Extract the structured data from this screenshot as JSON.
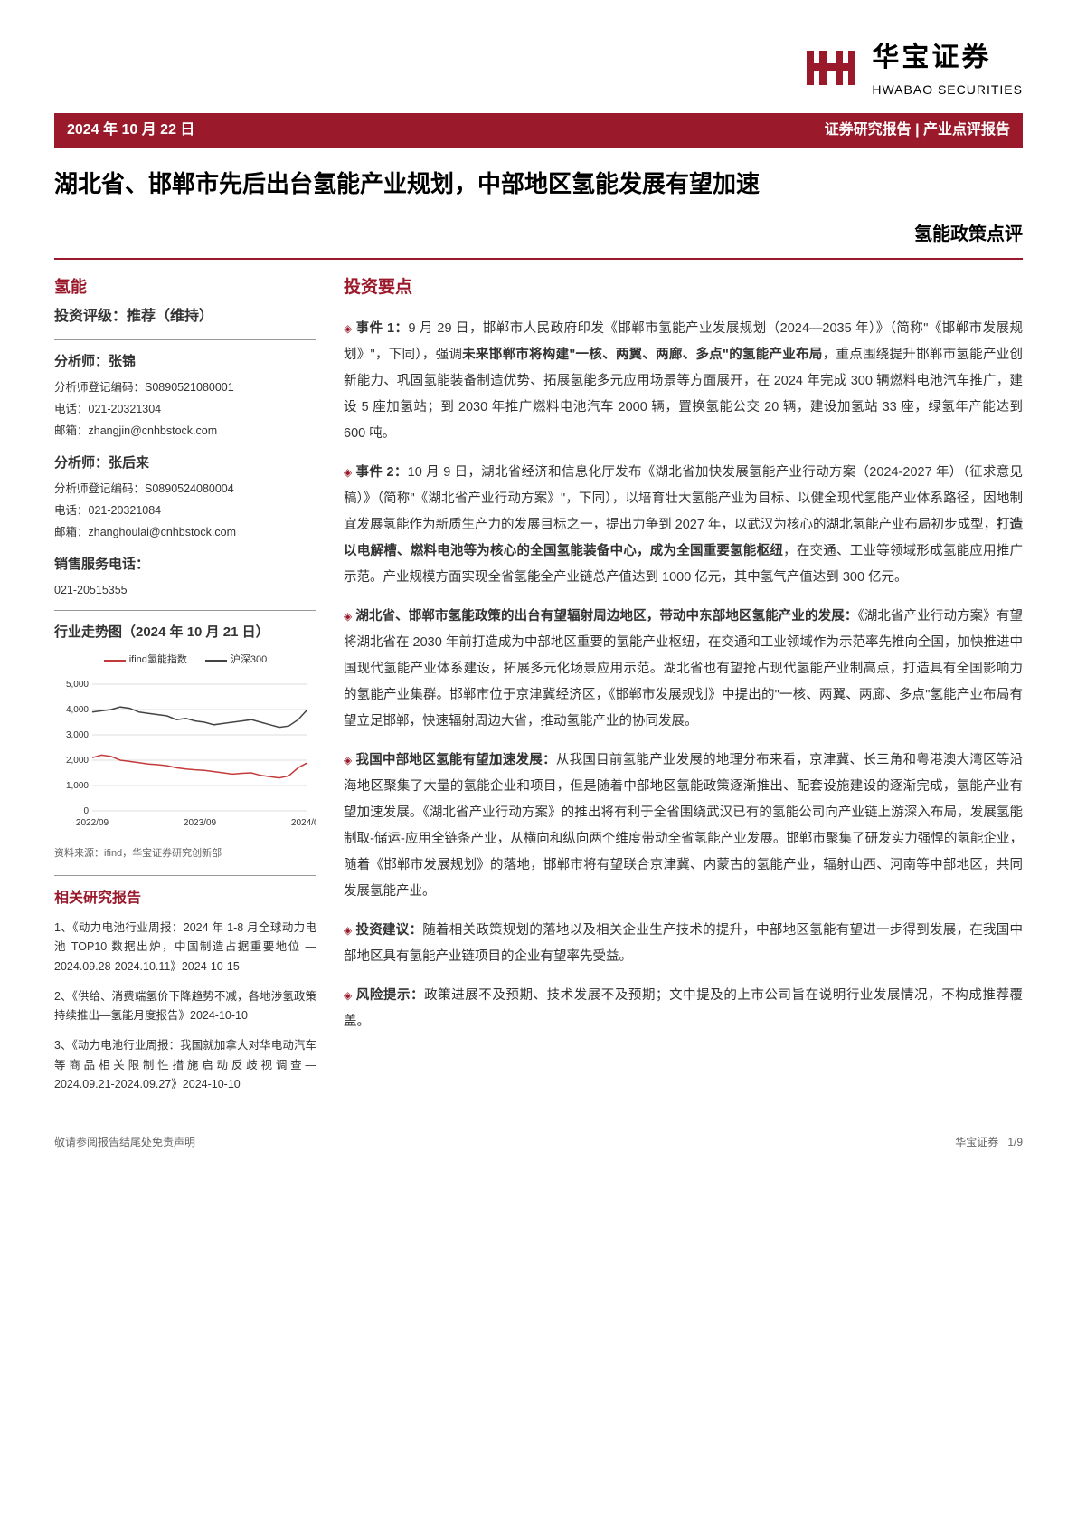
{
  "header": {
    "date": "2024 年 10 月 22 日",
    "report_type": "证券研究报告 | 产业点评报告",
    "logo_cn": "华宝证券",
    "logo_en": "HWABAO SECURITIES",
    "logo_color": "#9a1a2c"
  },
  "title": {
    "main": "湖北省、邯郸市先后出台氢能产业规划，中部地区氢能发展有望加速",
    "sub": "氢能政策点评"
  },
  "sidebar": {
    "sector": "氢能",
    "rating_label": "投资评级：推荐（维持）",
    "analysts": [
      {
        "name": "分析师：张锦",
        "code": "分析师登记编码：S0890521080001",
        "phone": "电话：021-20321304",
        "email": "邮箱：zhangjin@cnhbstock.com"
      },
      {
        "name": "分析师：张后来",
        "code": "分析师登记编码：S0890524080004",
        "phone": "电话：021-20321084",
        "email": "邮箱：zhanghoulai@cnhbstock.com"
      }
    ],
    "sales_title": "销售服务电话：",
    "sales_phone": "021-20515355",
    "chart_title": "行业走势图（2024 年 10 月 21 日）",
    "chart": {
      "type": "line",
      "series": [
        {
          "name": "ifind氢能指数",
          "color": "#c43a3a"
        },
        {
          "name": "沪深300",
          "color": "#444444"
        }
      ],
      "ylim": [
        0,
        5000
      ],
      "ytick_step": 1000,
      "yticks": [
        "0",
        "1,000",
        "2,000",
        "3,000",
        "4,000",
        "5,000"
      ],
      "xlabels": [
        "2022/09",
        "2023/09",
        "2024/09"
      ],
      "data_hydrogen": [
        2100,
        2200,
        2150,
        2000,
        1950,
        1900,
        1850,
        1820,
        1780,
        1700,
        1650,
        1620,
        1600,
        1550,
        1500,
        1450,
        1480,
        1500,
        1400,
        1350,
        1300,
        1380,
        1700,
        1900
      ],
      "data_csi300": [
        3900,
        3950,
        4000,
        4100,
        4050,
        3900,
        3850,
        3800,
        3750,
        3600,
        3650,
        3550,
        3500,
        3400,
        3450,
        3500,
        3550,
        3600,
        3500,
        3400,
        3300,
        3350,
        3600,
        4000
      ],
      "grid_color": "#ddd",
      "bg_color": "#ffffff"
    },
    "chart_source": "资料来源：ifind，华宝证券研究创新部",
    "related_title": "相关研究报告",
    "related": [
      "1、《动力电池行业周报：2024 年 1-8 月全球动力电池 TOP10 数据出炉，中国制造占据重要地位 — 2024.09.28-2024.10.11》2024-10-15",
      "2、《供给、消费端氢价下降趋势不减，各地涉氢政策持续推出—氢能月度报告》2024-10-10",
      "3、《动力电池行业周报：我国就加拿大对华电动汽车等商品相关限制性措施启动反歧视调查—2024.09.21-2024.09.27》2024-10-10"
    ]
  },
  "main": {
    "heading": "投资要点",
    "points": [
      {
        "bold_lead": "事件 1：",
        "text": "9 月 29 日，邯郸市人民政府印发《邯郸市氢能产业发展规划（2024—2035 年）》（简称\"《邯郸市发展规划》\"，下同），强调",
        "bold_mid": "未来邯郸市将构建\"一核、两翼、两廊、多点\"的氢能产业布局",
        "text_after": "，重点围绕提升邯郸市氢能产业创新能力、巩固氢能装备制造优势、拓展氢能多元应用场景等方面展开，在 2024 年完成 300 辆燃料电池汽车推广，建设 5 座加氢站；到 2030 年推广燃料电池汽车 2000 辆，置换氢能公交 20 辆，建设加氢站 33 座，绿氢年产能达到 600 吨。"
      },
      {
        "bold_lead": "事件 2：",
        "text": "10 月 9 日，湖北省经济和信息化厅发布《湖北省加快发展氢能产业行动方案（2024-2027 年）（征求意见稿）》（简称\"《湖北省产业行动方案》\"，下同），以培育壮大氢能产业为目标、以健全现代氢能产业体系路径，因地制宜发展氢能作为新质生产力的发展目标之一，提出力争到 2027 年，以武汉为核心的湖北氢能产业布局初步成型，",
        "bold_mid": "打造以电解槽、燃料电池等为核心的全国氢能装备中心，成为全国重要氢能枢纽",
        "text_after": "，在交通、工业等领域形成氢能应用推广示范。产业规模方面实现全省氢能全产业链总产值达到 1000 亿元，其中氢气产值达到 300 亿元。"
      },
      {
        "bold_lead": "",
        "text": "",
        "bold_mid": "湖北省、邯郸市氢能政策的出台有望辐射周边地区，带动中东部地区氢能产业的发展：",
        "text_after": "《湖北省产业行动方案》有望将湖北省在 2030 年前打造成为中部地区重要的氢能产业枢纽，在交通和工业领域作为示范率先推向全国，加快推进中国现代氢能产业体系建设，拓展多元化场景应用示范。湖北省也有望抢占现代氢能产业制高点，打造具有全国影响力的氢能产业集群。邯郸市位于京津冀经济区，《邯郸市发展规划》中提出的\"一核、两翼、两廊、多点\"氢能产业布局有望立足邯郸，快速辐射周边大省，推动氢能产业的协同发展。"
      },
      {
        "bold_lead": "",
        "text": "",
        "bold_mid": "我国中部地区氢能有望加速发展：",
        "text_after": "从我国目前氢能产业发展的地理分布来看，京津冀、长三角和粤港澳大湾区等沿海地区聚集了大量的氢能企业和项目，但是随着中部地区氢能政策逐渐推出、配套设施建设的逐渐完成，氢能产业有望加速发展。《湖北省产业行动方案》的推出将有利于全省围绕武汉已有的氢能公司向产业链上游深入布局，发展氢能制取-储运-应用全链条产业，从横向和纵向两个维度带动全省氢能产业发展。邯郸市聚集了研发实力强悍的氢能企业，随着《邯郸市发展规划》的落地，邯郸市将有望联合京津冀、内蒙古的氢能产业，辐射山西、河南等中部地区，共同发展氢能产业。"
      },
      {
        "bold_lead": "",
        "text": "",
        "bold_mid": "投资建议：",
        "text_after": "随着相关政策规划的落地以及相关企业生产技术的提升，中部地区氢能有望进一步得到发展，在我国中部地区具有氢能产业链项目的企业有望率先受益。"
      },
      {
        "bold_lead": "",
        "text": "",
        "bold_mid": "风险提示：",
        "text_after": "政策进展不及预期、技术发展不及预期；文中提及的上市公司旨在说明行业发展情况，不构成推荐覆盖。"
      }
    ]
  },
  "footer": {
    "disclaimer": "敬请参阅报告结尾处免责声明",
    "company": "华宝证券",
    "page": "1/9"
  }
}
